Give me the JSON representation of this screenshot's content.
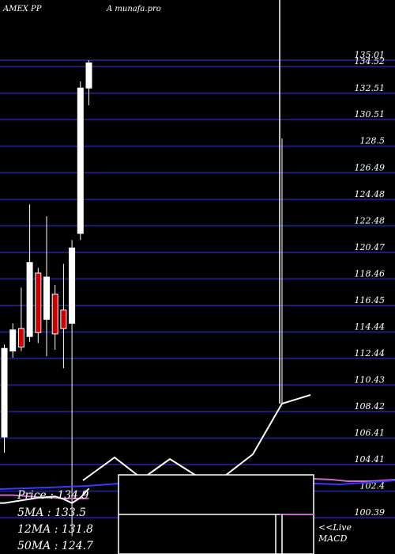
{
  "header": {
    "symbol": "AMEX  PP",
    "brand": "A munafa.pro"
  },
  "info": {
    "price": "Price   : 134.9",
    "ma5": "5MA : 133.5",
    "ma12": "12MA : 131.8",
    "ma50": "50MA : 124.7"
  },
  "live": {
    "line1": "<<Live",
    "line2": "MACD"
  },
  "colors": {
    "background": "#000000",
    "grid": "#1e1e78",
    "up": "#ffffff",
    "down": "#cc0000",
    "ma_pink": "#cc66cc",
    "ma_blue": "#3a3aff"
  },
  "chart_data": {
    "type": "candlestick",
    "ylim": [
      98.5,
      137.5
    ],
    "y_ticks": [
      135.01,
      134.52,
      132.51,
      130.51,
      128.5,
      126.49,
      124.48,
      122.48,
      120.47,
      118.46,
      116.45,
      114.44,
      112.44,
      110.43,
      108.42,
      106.41,
      104.41,
      102.4,
      100.39
    ],
    "y_tick_labels": [
      "135.01",
      "134.52",
      "132.51",
      "130.51",
      "128.5",
      "126.49",
      "124.48",
      "122.48",
      "120.47",
      "118.46",
      "116.45",
      "114.44",
      "112.44",
      "110.43",
      "108.42",
      "106.41",
      "104.41",
      "102.4",
      "100.39"
    ],
    "candles": [
      {
        "open": 106.5,
        "close": 113.2,
        "high": 113.5,
        "low": 105.3,
        "dir": "up"
      },
      {
        "open": 113.0,
        "close": 114.6,
        "high": 115.1,
        "low": 112.5,
        "dir": "up"
      },
      {
        "open": 114.7,
        "close": 113.3,
        "high": 117.8,
        "low": 113.0,
        "dir": "down"
      },
      {
        "open": 114.1,
        "close": 119.7,
        "high": 124.1,
        "low": 113.7,
        "dir": "up"
      },
      {
        "open": 118.9,
        "close": 114.4,
        "high": 119.3,
        "low": 113.6,
        "dir": "down"
      },
      {
        "open": 115.4,
        "close": 118.6,
        "high": 123.2,
        "low": 112.6,
        "dir": "up"
      },
      {
        "open": 117.3,
        "close": 114.3,
        "high": 118.0,
        "low": 113.1,
        "dir": "down"
      },
      {
        "open": 116.1,
        "close": 114.7,
        "high": 119.6,
        "low": 111.7,
        "dir": "down"
      },
      {
        "open": 115.1,
        "close": 120.8,
        "high": 121.4,
        "low": 99.0,
        "dir": "up"
      },
      {
        "open": 121.9,
        "close": 132.9,
        "high": 133.4,
        "low": 121.4,
        "dir": "up"
      },
      {
        "open": 132.9,
        "close": 134.8,
        "high": 135.0,
        "low": 131.6,
        "dir": "up"
      }
    ],
    "ma_pink": [
      102.1,
      102.1,
      102.05,
      102.0,
      101.95,
      101.9,
      101.9,
      101.85,
      101.85,
      101.85,
      101.85
    ],
    "ma_white": [
      101.5,
      101.6,
      101.7,
      101.8,
      101.9,
      101.95,
      102.0,
      101.8,
      101.5,
      101.9,
      102.6
    ],
    "macd_line": [
      {
        "x": 105,
        "y": 607
      },
      {
        "x": 145,
        "y": 578
      },
      {
        "x": 180,
        "y": 605
      },
      {
        "x": 215,
        "y": 580
      },
      {
        "x": 250,
        "y": 602
      },
      {
        "x": 285,
        "y": 601
      },
      {
        "x": 320,
        "y": 574
      },
      {
        "x": 357,
        "y": 510
      },
      {
        "x": 393,
        "y": 499
      }
    ],
    "ma_right_pink": [
      {
        "x": 397,
        "y": 605
      },
      {
        "x": 420,
        "y": 606
      },
      {
        "x": 440,
        "y": 608
      },
      {
        "x": 470,
        "y": 608
      },
      {
        "x": 500,
        "y": 606
      }
    ],
    "ma_right_blue": [
      {
        "x": 397,
        "y": 611
      },
      {
        "x": 430,
        "y": 612
      },
      {
        "x": 460,
        "y": 610
      },
      {
        "x": 500,
        "y": 607
      }
    ]
  }
}
